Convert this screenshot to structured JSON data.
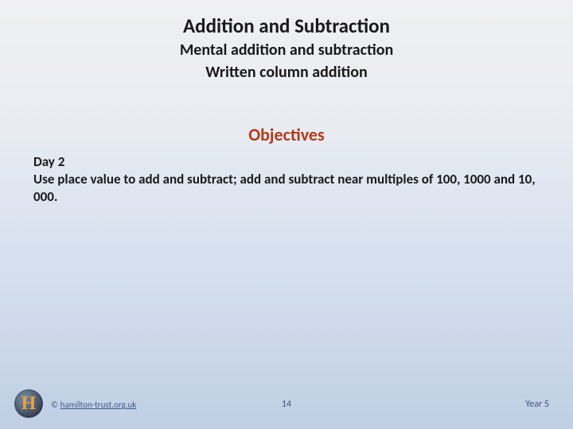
{
  "header": {
    "title": "Addition and Subtraction",
    "subtitle_line1": "Mental addition and subtraction",
    "subtitle_line2": "Written column addition"
  },
  "objectives": {
    "heading": "Objectives",
    "day_label": "Day 2",
    "day_text": "Use place value to add and subtract; add and subtract near multiples of 100, 1000 and 10, 000."
  },
  "footer": {
    "logo_letter": "H",
    "copyright_prefix": "© ",
    "copyright_link": "hamilton-trust.org.uk",
    "page_number": "14",
    "year_label": "Year 5"
  },
  "colors": {
    "heading_accent": "#b23a1a",
    "footer_text": "#3c5a8a",
    "body_text": "#1a1a1a",
    "logo_letter_color": "#e8a23c",
    "bg_grad_top": "#f0f0f2",
    "bg_grad_bottom": "#c0cfe4"
  }
}
